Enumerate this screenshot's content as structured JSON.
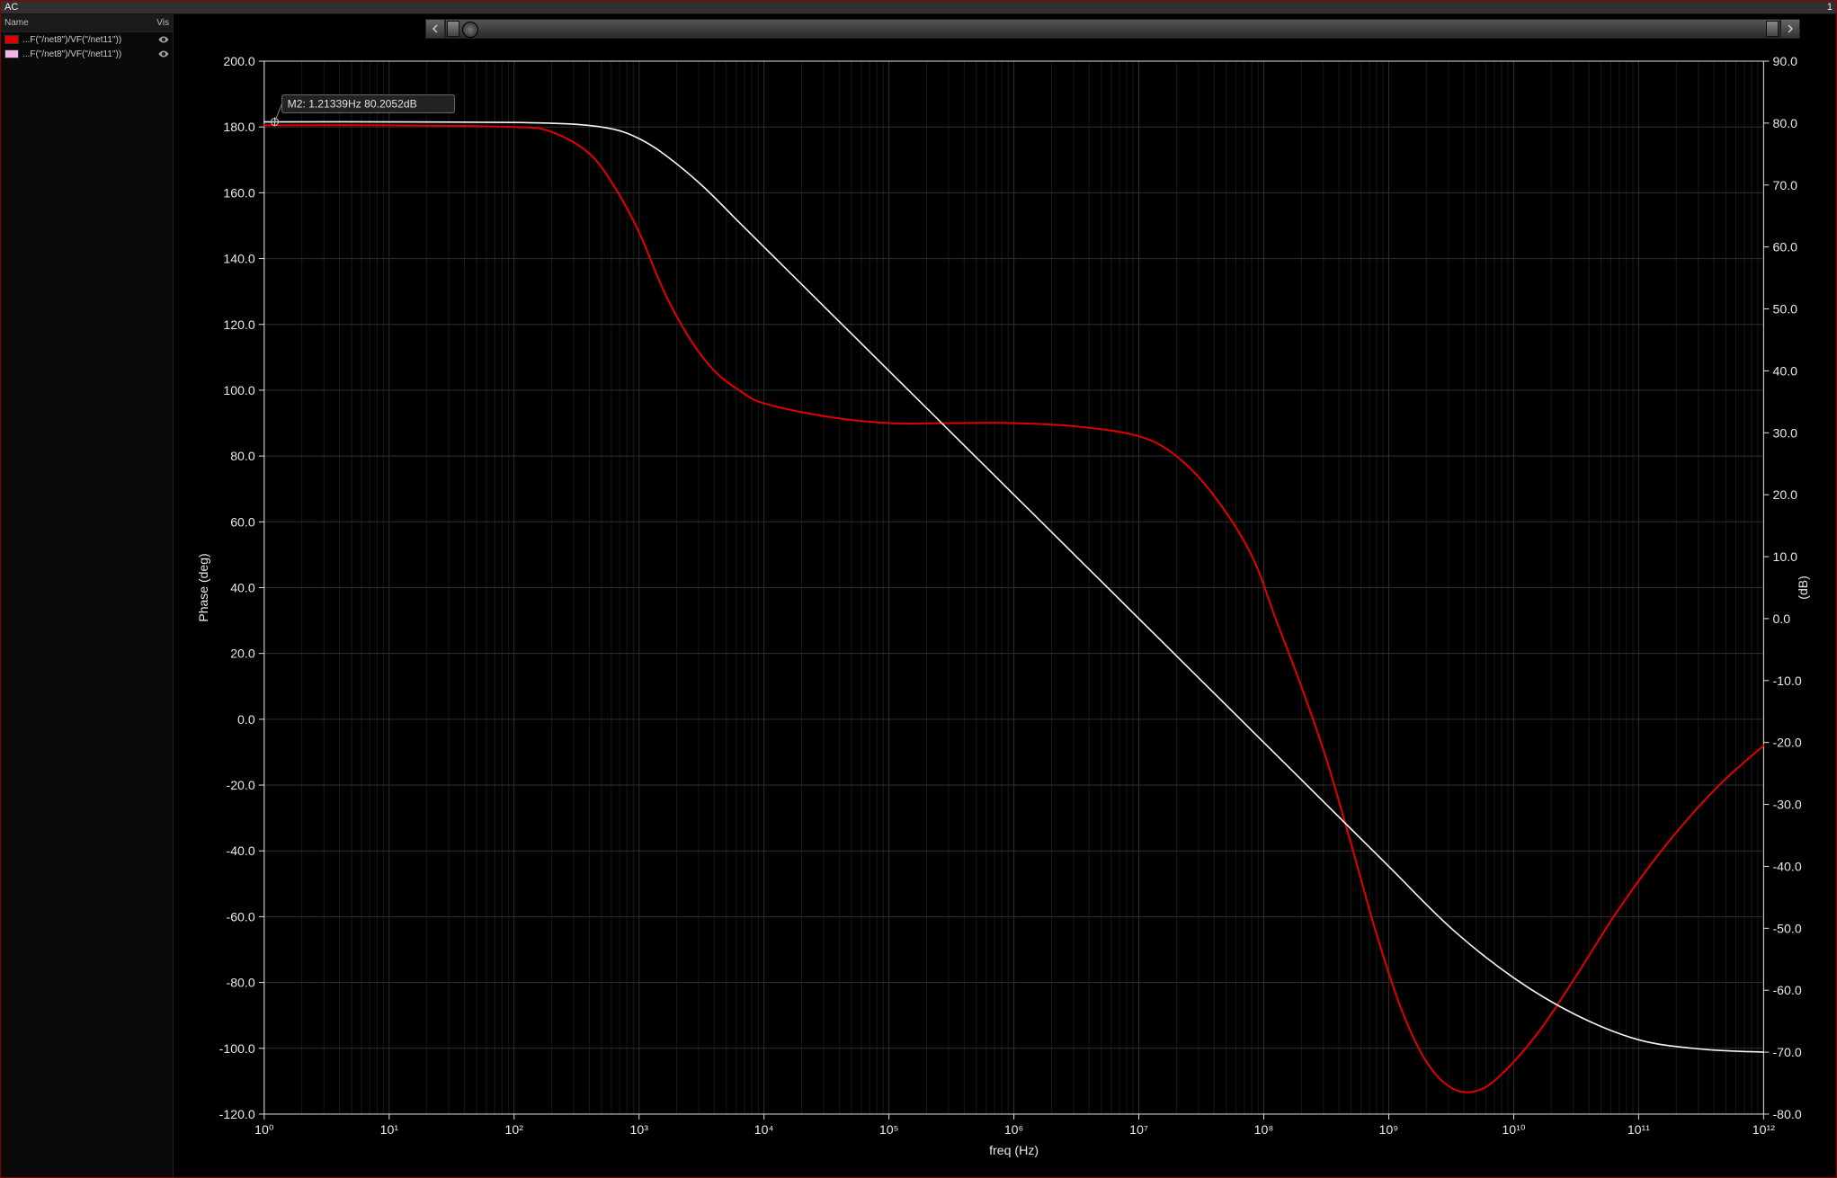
{
  "window": {
    "title": "AC",
    "right_indicator": "1"
  },
  "sidebar": {
    "header_left": "Name",
    "header_right": "Vis",
    "items": [
      {
        "color": "#e10000",
        "label": "...F(\"/net8\")/VF(\"/net11\"))"
      },
      {
        "color": "#f0b6e6",
        "label": "...F(\"/net8\")/VF(\"/net11\"))"
      }
    ]
  },
  "chart": {
    "type": "bode",
    "background_color": "#000000",
    "grid_major_color": "#2f2f2f",
    "grid_minor_color": "#181818",
    "axis_color": "#e0e0e0",
    "text_color": "#e8e8e8",
    "marker": {
      "label": "M2: 1.21339Hz 80.2052dB",
      "freq_hz": 1.21339,
      "db": 80.2052
    },
    "x_axis": {
      "label": "freq (Hz)",
      "scale": "log",
      "range": [
        1,
        1000000000000.0
      ],
      "tick_decades": [
        0,
        1,
        2,
        3,
        4,
        5,
        6,
        7,
        8,
        9,
        10,
        11,
        12
      ],
      "tick_labels": [
        "10⁰",
        "10¹",
        "10²",
        "10³",
        "10⁴",
        "10⁵",
        "10⁶",
        "10⁷",
        "10⁸",
        "10⁹",
        "10¹⁰",
        "10¹¹",
        "10¹²"
      ]
    },
    "y_left": {
      "label": "Phase (deg)",
      "range": [
        -120,
        200
      ],
      "tick_step": 20,
      "ticks": [
        -120,
        -100,
        -80,
        -60,
        -40,
        -20,
        0,
        20,
        40,
        60,
        80,
        100,
        120,
        140,
        160,
        180,
        200
      ],
      "tick_labels": [
        "-120.0",
        "-100.0",
        "-80.0",
        "-60.0",
        "-40.0",
        "-20.0",
        "0.0",
        "20.0",
        "40.0",
        "60.0",
        "80.0",
        "100.0",
        "120.0",
        "140.0",
        "160.0",
        "180.0",
        "200.0"
      ]
    },
    "y_right": {
      "label": "(dB)",
      "range": [
        -80,
        90
      ],
      "tick_step": 10,
      "ticks": [
        -80,
        -70,
        -60,
        -50,
        -40,
        -30,
        -20,
        -10,
        0,
        10,
        20,
        30,
        40,
        50,
        60,
        70,
        80,
        90
      ]
    },
    "series": [
      {
        "name": "phase",
        "axis": "left",
        "color": "#e10000",
        "line_width": 2,
        "points_logx_deg": [
          [
            0,
            180.5
          ],
          [
            1,
            180.5
          ],
          [
            2,
            180.0
          ],
          [
            2.3,
            178.5
          ],
          [
            2.6,
            172
          ],
          [
            2.8,
            162
          ],
          [
            3.0,
            148
          ],
          [
            3.2,
            130
          ],
          [
            3.4,
            116
          ],
          [
            3.6,
            106
          ],
          [
            3.8,
            100
          ],
          [
            4.0,
            96
          ],
          [
            4.5,
            92
          ],
          [
            5.0,
            90
          ],
          [
            5.5,
            90
          ],
          [
            6.0,
            90
          ],
          [
            6.5,
            89
          ],
          [
            7.0,
            86
          ],
          [
            7.3,
            80
          ],
          [
            7.6,
            68
          ],
          [
            7.9,
            50
          ],
          [
            8.1,
            30
          ],
          [
            8.3,
            10
          ],
          [
            8.5,
            -12
          ],
          [
            8.7,
            -38
          ],
          [
            8.9,
            -65
          ],
          [
            9.1,
            -88
          ],
          [
            9.3,
            -104
          ],
          [
            9.5,
            -112
          ],
          [
            9.7,
            -113
          ],
          [
            9.9,
            -108
          ],
          [
            10.2,
            -95
          ],
          [
            10.5,
            -78
          ],
          [
            10.8,
            -60
          ],
          [
            11.1,
            -44
          ],
          [
            11.4,
            -30
          ],
          [
            11.7,
            -18
          ],
          [
            12.0,
            -8
          ]
        ]
      },
      {
        "name": "magnitude",
        "axis": "right",
        "color": "#f6f6f6",
        "line_width": 1.6,
        "points_logx_db": [
          [
            0,
            80.2
          ],
          [
            1,
            80.2
          ],
          [
            2,
            80.1
          ],
          [
            2.5,
            79.8
          ],
          [
            2.8,
            79.0
          ],
          [
            3.0,
            77.5
          ],
          [
            3.2,
            75
          ],
          [
            3.5,
            70
          ],
          [
            3.8,
            64
          ],
          [
            4.0,
            60
          ],
          [
            4.5,
            50
          ],
          [
            5.0,
            40
          ],
          [
            5.5,
            30
          ],
          [
            6.0,
            20
          ],
          [
            6.5,
            10
          ],
          [
            7.0,
            0
          ],
          [
            7.5,
            -10
          ],
          [
            8.0,
            -20
          ],
          [
            8.5,
            -30
          ],
          [
            9.0,
            -40
          ],
          [
            9.5,
            -50
          ],
          [
            10.0,
            -58
          ],
          [
            10.5,
            -64
          ],
          [
            11.0,
            -68
          ],
          [
            11.5,
            -69.5
          ],
          [
            12.0,
            -70
          ]
        ]
      }
    ]
  }
}
